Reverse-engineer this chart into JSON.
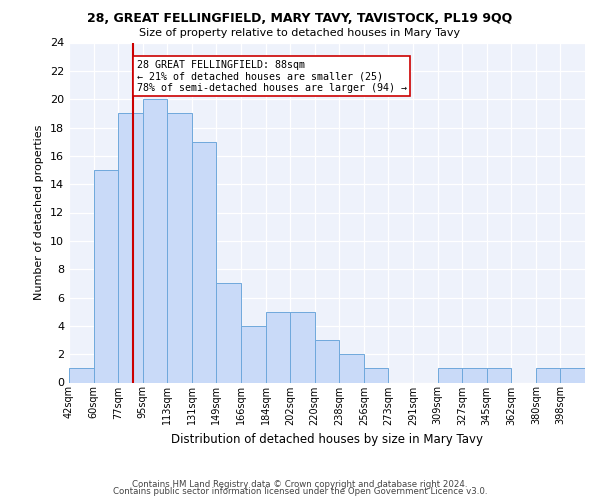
{
  "title1": "28, GREAT FELLINGFIELD, MARY TAVY, TAVISTOCK, PL19 9QQ",
  "title2": "Size of property relative to detached houses in Mary Tavy",
  "xlabel": "Distribution of detached houses by size in Mary Tavy",
  "ylabel": "Number of detached properties",
  "bin_labels": [
    "42sqm",
    "60sqm",
    "77sqm",
    "95sqm",
    "113sqm",
    "131sqm",
    "149sqm",
    "166sqm",
    "184sqm",
    "202sqm",
    "220sqm",
    "238sqm",
    "256sqm",
    "273sqm",
    "291sqm",
    "309sqm",
    "327sqm",
    "345sqm",
    "362sqm",
    "380sqm",
    "398sqm"
  ],
  "counts": [
    1,
    15,
    19,
    20,
    19,
    17,
    7,
    4,
    5,
    5,
    3,
    2,
    1,
    0,
    0,
    1,
    1,
    1,
    0,
    1,
    1
  ],
  "bar_color": "#c9daf8",
  "bar_edge_color": "#6fa8dc",
  "vline_bin": 2.35,
  "vline_color": "#cc0000",
  "annotation_text": "28 GREAT FELLINGFIELD: 88sqm\n← 21% of detached houses are smaller (25)\n78% of semi-detached houses are larger (94) →",
  "annotation_box_color": "#ffffff",
  "annotation_box_edge": "#cc0000",
  "background_color": "#eef2fb",
  "footer1": "Contains HM Land Registry data © Crown copyright and database right 2024.",
  "footer2": "Contains public sector information licensed under the Open Government Licence v3.0.",
  "ylim": [
    0,
    24
  ],
  "yticks": [
    0,
    2,
    4,
    6,
    8,
    10,
    12,
    14,
    16,
    18,
    20,
    22,
    24
  ]
}
